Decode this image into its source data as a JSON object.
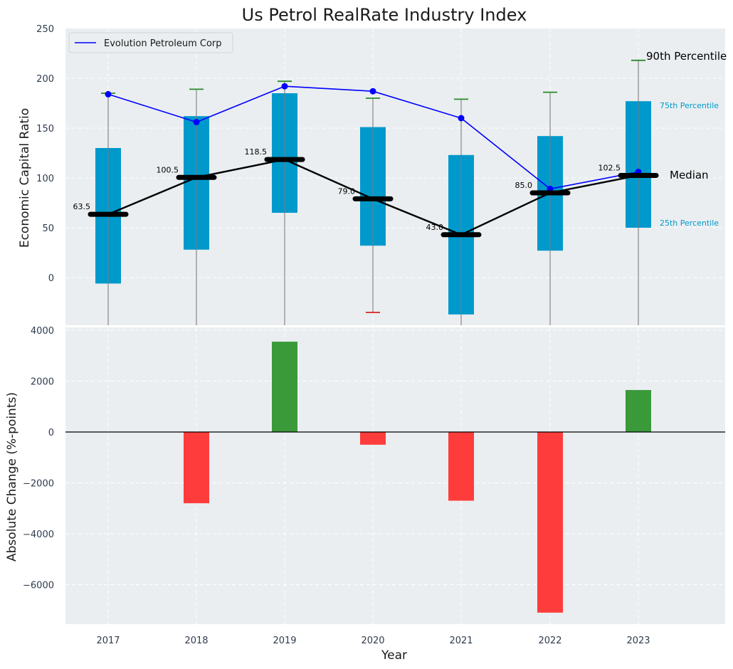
{
  "chart_data": {
    "type": "box-and-bar",
    "title": "Us Petrol RealRate Industry Index",
    "xlabel": "Year",
    "categories": [
      "2017",
      "2018",
      "2019",
      "2020",
      "2021",
      "2022",
      "2023"
    ],
    "top_panel": {
      "ylabel": "Economic Capital Ratio",
      "ylim": [
        -48,
        250
      ],
      "yticks": [
        0,
        50,
        100,
        150,
        200,
        250
      ],
      "box_color": "#0099cc",
      "boxes": [
        {
          "year": "2017",
          "q1": -6,
          "q3": 130,
          "median": 63.5,
          "p90": 185,
          "whisker_low": -48
        },
        {
          "year": "2018",
          "q1": 28,
          "q3": 162,
          "median": 100.5,
          "p90": 189,
          "whisker_low": -48
        },
        {
          "year": "2019",
          "q1": 65,
          "q3": 185,
          "median": 118.5,
          "p90": 197,
          "whisker_low": -48
        },
        {
          "year": "2020",
          "q1": 32,
          "q3": 151,
          "median": 79.0,
          "p90": 180,
          "whisker_low": -35
        },
        {
          "year": "2021",
          "q1": -37,
          "q3": 123,
          "median": 43.0,
          "p90": 179,
          "whisker_low": -48
        },
        {
          "year": "2022",
          "q1": 27,
          "q3": 142,
          "median": 85.0,
          "p90": 186,
          "whisker_low": -48
        },
        {
          "year": "2023",
          "q1": 50,
          "q3": 177,
          "median": 102.5,
          "p90": 218,
          "whisker_low": -48
        }
      ],
      "median_labels": [
        "63.5",
        "100.5",
        "118.5",
        "79.0",
        "43.0",
        "85.0",
        "102.5"
      ],
      "company_series": {
        "name": "Evolution Petroleum Corp",
        "color": "#0000ff",
        "values": [
          184,
          156,
          192,
          187,
          160,
          89,
          106
        ]
      },
      "annotations": {
        "p90": "90th Percentile",
        "p75": "75th Percentile",
        "median": "Median",
        "p25": "25th Percentile"
      }
    },
    "bottom_panel": {
      "ylabel": "Absolute Change (%-points)",
      "ylim": [
        -7600,
        4000
      ],
      "yticks": [
        -6000,
        -4000,
        -2000,
        0,
        2000,
        4000
      ],
      "values": [
        0,
        -2800,
        3550,
        -500,
        -2700,
        -7100,
        1650
      ],
      "positive_color": "#3a9a3a",
      "negative_color": "#ff3c3c"
    }
  }
}
